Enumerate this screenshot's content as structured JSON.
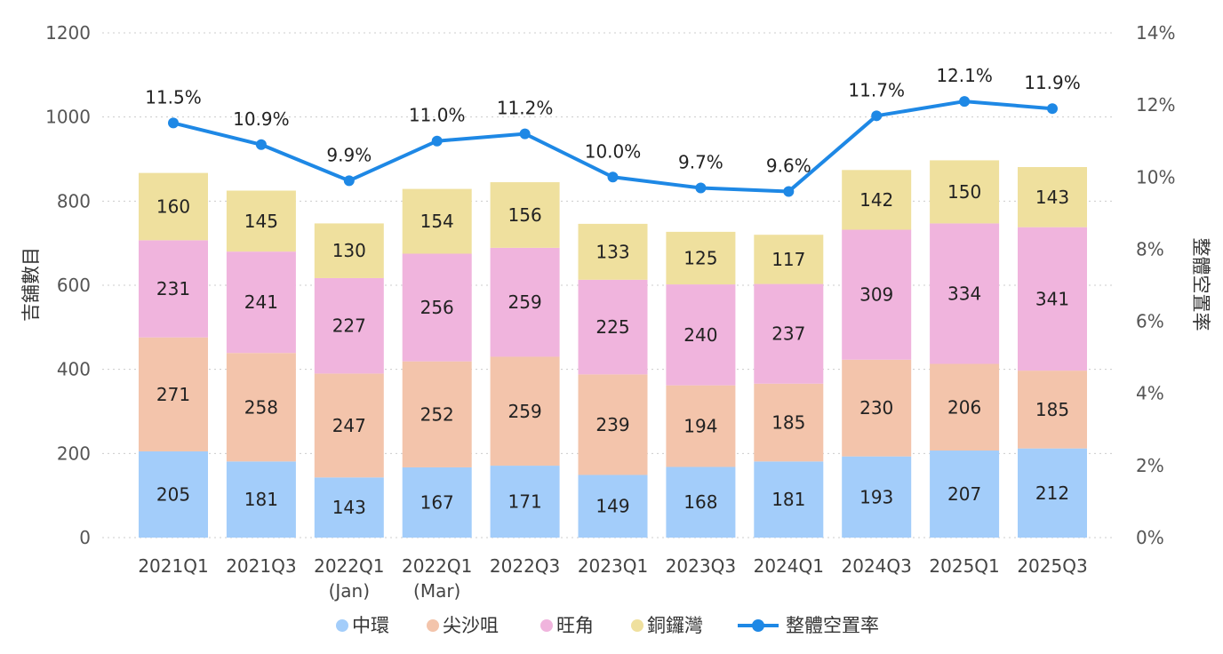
{
  "chart_data": {
    "type": "bar",
    "stacked": true,
    "categories": [
      "2021Q1",
      "2021Q3",
      "2022Q1\n(Jan)",
      "2022Q1\n(Mar)",
      "2022Q3",
      "2023Q1",
      "2023Q3",
      "2024Q1",
      "2024Q3",
      "2025Q1",
      "2025Q3"
    ],
    "series": [
      {
        "name": "中環",
        "color": "#a3cdfa",
        "values": [
          205,
          181,
          143,
          167,
          171,
          149,
          168,
          181,
          193,
          207,
          212
        ]
      },
      {
        "name": "尖沙咀",
        "color": "#f3c4ab",
        "values": [
          271,
          258,
          247,
          252,
          259,
          239,
          194,
          185,
          230,
          206,
          185
        ]
      },
      {
        "name": "旺角",
        "color": "#f0b4dd",
        "values": [
          231,
          241,
          227,
          256,
          259,
          225,
          240,
          237,
          309,
          334,
          341
        ]
      },
      {
        "name": "銅鑼灣",
        "color": "#efe09e",
        "values": [
          160,
          145,
          130,
          154,
          156,
          133,
          125,
          117,
          142,
          150,
          143
        ]
      }
    ],
    "line_series": {
      "name": "整體空置率",
      "color": "#1e88e5",
      "values": [
        11.5,
        10.9,
        9.9,
        11.0,
        11.2,
        10.0,
        9.7,
        9.6,
        11.7,
        12.1,
        11.9
      ],
      "labels": [
        "11.5%",
        "10.9%",
        "9.9%",
        "11.0%",
        "11.2%",
        "10.0%",
        "9.7%",
        "9.6%",
        "11.7%",
        "12.1%",
        "11.9%"
      ]
    },
    "ylabel": "吉舖數目",
    "y2label": "整體空置率",
    "ylim": [
      0,
      1200
    ],
    "y2lim": [
      0,
      14
    ],
    "yticks": [
      "0",
      "200",
      "400",
      "600",
      "800",
      "1000",
      "1200"
    ],
    "y2ticks": [
      "0%",
      "2%",
      "4%",
      "6%",
      "8%",
      "10%",
      "12%",
      "14%"
    ],
    "grid": true,
    "legend_position": "bottom"
  }
}
